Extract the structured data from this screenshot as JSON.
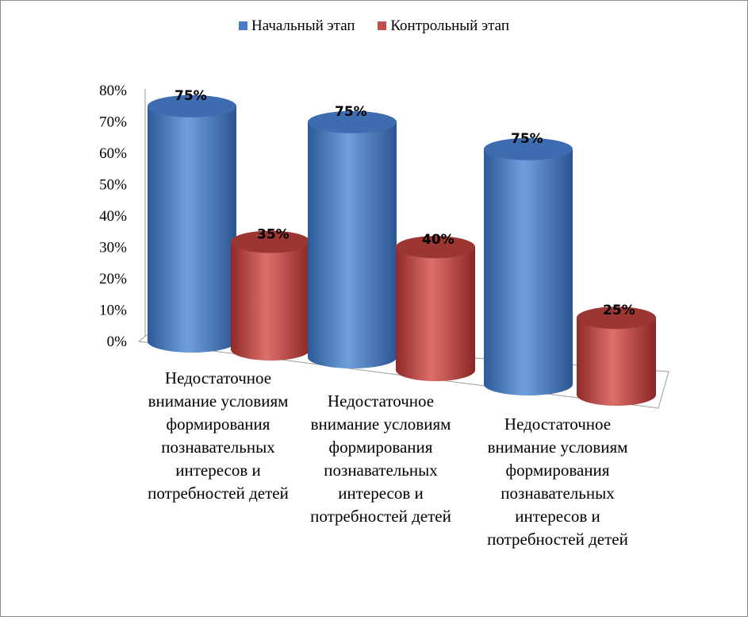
{
  "chart_data": {
    "type": "bar",
    "categories": [
      "Недостаточное внимание условиям формирования познавательных интересов и потребностей детей",
      "Недостаточное внимание условиям формирования познавательных интересов и потребностей детей",
      "Недостаточное внимание условиям формирования познавательных интересов и потребностей детей"
    ],
    "series": [
      {
        "name": "Начальный этап",
        "values": [
          75,
          75,
          75
        ],
        "labels": [
          "75%",
          "75%",
          "75%"
        ],
        "color": "#4a7ec4"
      },
      {
        "name": "Контрольный этап",
        "values": [
          35,
          40,
          25
        ],
        "labels": [
          "35%",
          "40%",
          "25%"
        ],
        "color": "#c0504d"
      }
    ],
    "y_ticks": [
      "0%",
      "10%",
      "20%",
      "30%",
      "40%",
      "50%",
      "60%",
      "70%",
      "80%"
    ],
    "ylim": [
      0,
      80
    ],
    "legend_position": "top",
    "style": "3d-cylinder"
  }
}
